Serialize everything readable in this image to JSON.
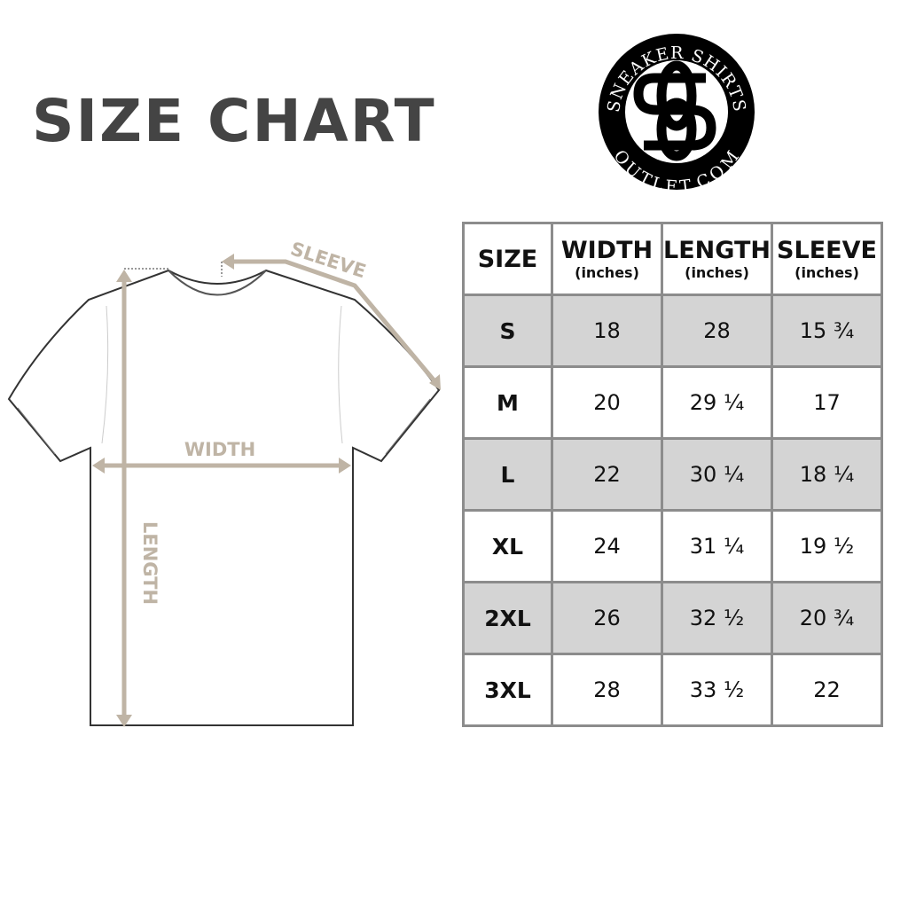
{
  "title": "SIZE CHART",
  "logo": {
    "text_top": "SNEAKER SHIRTS",
    "text_bottom": "OUTLET.COM",
    "monogram": "SS"
  },
  "diagram": {
    "labels": {
      "sleeve": "SLEEVE",
      "width": "WIDTH",
      "length": "LENGTH"
    },
    "arrow_color": "#bfb4a5"
  },
  "table": {
    "headers": [
      {
        "label": "SIZE",
        "unit": ""
      },
      {
        "label": "WIDTH",
        "unit": "(inches)"
      },
      {
        "label": "LENGTH",
        "unit": "(inches)"
      },
      {
        "label": "SLEEVE",
        "unit": "(inches)"
      }
    ],
    "rows": [
      [
        "S",
        "18",
        "28",
        "15 ¾"
      ],
      [
        "M",
        "20",
        "29 ¼",
        "17"
      ],
      [
        "L",
        "22",
        "30 ¼",
        "18 ¼"
      ],
      [
        "XL",
        "24",
        "31 ¼",
        "19 ½"
      ],
      [
        "2XL",
        "26",
        "32 ½",
        "20 ¾"
      ],
      [
        "3XL",
        "28",
        "33 ½",
        "22"
      ]
    ],
    "stripe_color": "#d4d4d4",
    "border_color": "#8c8c8c"
  }
}
